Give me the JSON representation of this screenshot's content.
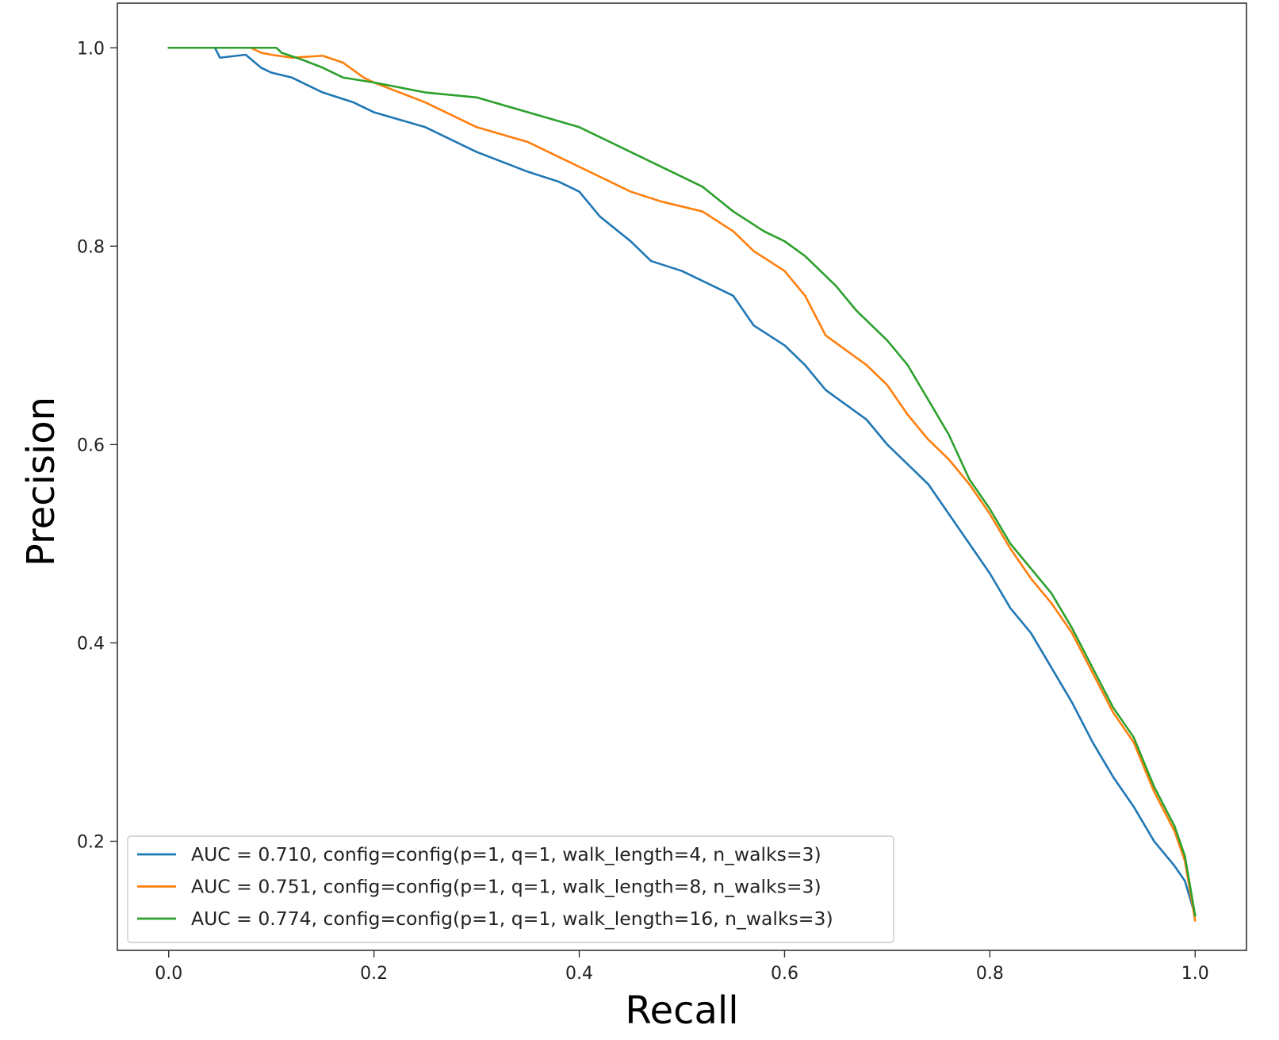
{
  "chart_data": {
    "type": "line",
    "title": "",
    "xlabel": "Recall",
    "ylabel": "Precision",
    "xlim": [
      -0.05,
      1.05
    ],
    "ylim": [
      0.09,
      1.045
    ],
    "xticks": [
      0.0,
      0.2,
      0.4,
      0.6,
      0.8,
      1.0
    ],
    "xtick_labels": [
      "0.0",
      "0.2",
      "0.4",
      "0.6",
      "0.8",
      "1.0"
    ],
    "yticks": [
      0.2,
      0.4,
      0.6,
      0.8,
      1.0
    ],
    "ytick_labels": [
      "0.2",
      "0.4",
      "0.6",
      "0.8",
      "1.0"
    ],
    "grid": false,
    "legend_position": "lower-left",
    "series": [
      {
        "name": "AUC = 0.710, config=config(p=1, q=1, walk_length=4, n_walks=3)",
        "color": "#1f77b4",
        "x": [
          0.0,
          0.045,
          0.05,
          0.075,
          0.09,
          0.1,
          0.12,
          0.15,
          0.18,
          0.2,
          0.25,
          0.3,
          0.35,
          0.38,
          0.4,
          0.42,
          0.45,
          0.47,
          0.5,
          0.52,
          0.55,
          0.57,
          0.6,
          0.62,
          0.64,
          0.66,
          0.68,
          0.7,
          0.72,
          0.74,
          0.76,
          0.78,
          0.8,
          0.82,
          0.84,
          0.86,
          0.88,
          0.9,
          0.92,
          0.94,
          0.96,
          0.98,
          0.99,
          1.0
        ],
        "y": [
          1.0,
          1.0,
          0.99,
          0.993,
          0.98,
          0.975,
          0.97,
          0.955,
          0.945,
          0.935,
          0.92,
          0.895,
          0.875,
          0.865,
          0.855,
          0.83,
          0.805,
          0.785,
          0.775,
          0.765,
          0.75,
          0.72,
          0.7,
          0.68,
          0.655,
          0.64,
          0.625,
          0.6,
          0.58,
          0.56,
          0.53,
          0.5,
          0.47,
          0.435,
          0.41,
          0.375,
          0.34,
          0.3,
          0.265,
          0.235,
          0.2,
          0.175,
          0.16,
          0.125
        ]
      },
      {
        "name": "AUC = 0.751, config=config(p=1, q=1, walk_length=8, n_walks=3)",
        "color": "#ff7f0e",
        "x": [
          0.0,
          0.08,
          0.09,
          0.1,
          0.12,
          0.15,
          0.17,
          0.19,
          0.2,
          0.25,
          0.3,
          0.35,
          0.38,
          0.4,
          0.45,
          0.48,
          0.52,
          0.55,
          0.57,
          0.6,
          0.62,
          0.64,
          0.66,
          0.68,
          0.7,
          0.72,
          0.74,
          0.76,
          0.78,
          0.8,
          0.82,
          0.84,
          0.86,
          0.88,
          0.9,
          0.92,
          0.94,
          0.96,
          0.98,
          0.99,
          1.0
        ],
        "y": [
          1.0,
          1.0,
          0.995,
          0.993,
          0.99,
          0.992,
          0.985,
          0.97,
          0.965,
          0.945,
          0.92,
          0.905,
          0.89,
          0.88,
          0.855,
          0.845,
          0.835,
          0.815,
          0.795,
          0.775,
          0.75,
          0.71,
          0.695,
          0.68,
          0.66,
          0.63,
          0.605,
          0.585,
          0.56,
          0.53,
          0.495,
          0.465,
          0.44,
          0.41,
          0.37,
          0.33,
          0.3,
          0.25,
          0.21,
          0.18,
          0.12
        ]
      },
      {
        "name": "AUC = 0.774, config=config(p=1, q=1, walk_length=16, n_walks=3)",
        "color": "#2ca02c",
        "x": [
          0.0,
          0.105,
          0.11,
          0.13,
          0.15,
          0.17,
          0.2,
          0.25,
          0.3,
          0.35,
          0.4,
          0.45,
          0.5,
          0.52,
          0.55,
          0.58,
          0.6,
          0.62,
          0.65,
          0.67,
          0.7,
          0.72,
          0.74,
          0.76,
          0.78,
          0.8,
          0.82,
          0.84,
          0.86,
          0.88,
          0.9,
          0.92,
          0.94,
          0.96,
          0.98,
          0.99,
          1.0
        ],
        "y": [
          1.0,
          1.0,
          0.995,
          0.988,
          0.98,
          0.97,
          0.965,
          0.955,
          0.95,
          0.935,
          0.92,
          0.895,
          0.87,
          0.86,
          0.835,
          0.815,
          0.805,
          0.79,
          0.76,
          0.735,
          0.705,
          0.68,
          0.645,
          0.61,
          0.565,
          0.535,
          0.5,
          0.475,
          0.45,
          0.415,
          0.375,
          0.335,
          0.305,
          0.255,
          0.215,
          0.185,
          0.125
        ]
      }
    ]
  }
}
